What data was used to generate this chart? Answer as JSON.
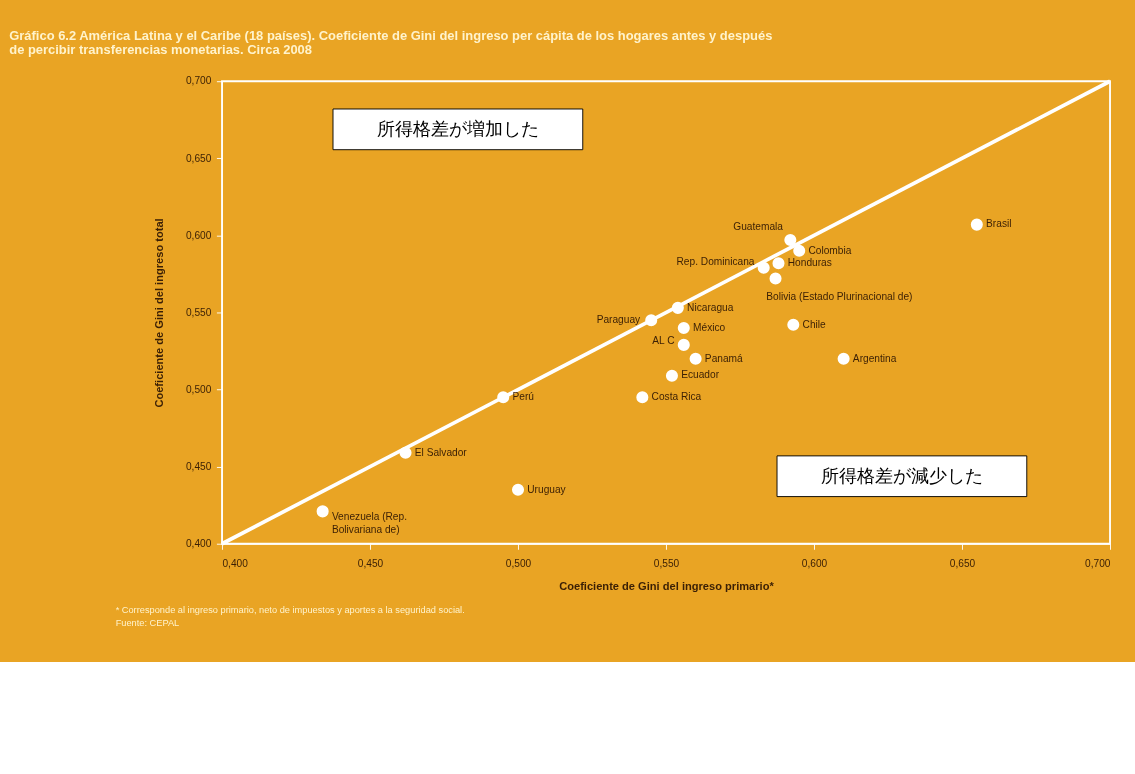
{
  "chart_data": {
    "type": "scatter",
    "title": "Gráfico 6.2 América Latina y el Caribe (18 países). Coeficiente de Gini del ingreso per cápita de los hogares antes y después de percibir transferencias monetarias. Circa 2008",
    "xlabel": "Coeficiente de Gini del ingreso primario*",
    "ylabel": "Coeficiente de Gini del ingreso total",
    "annotations": [
      "所得格差が増加した",
      "所得格差が減少した",
      "* Corresponde al ingreso primario, neto de impuestos y aportes a la seguridad social.",
      "Fuente: CEPAL"
    ],
    "xlim": [
      0.4,
      0.7
    ],
    "ylim": [
      0.4,
      0.7
    ],
    "xticks": [
      {
        "value": 0.4,
        "label": "0,400"
      },
      {
        "value": 0.45,
        "label": "0,450"
      },
      {
        "value": 0.5,
        "label": "0,500"
      },
      {
        "value": 0.55,
        "label": "0,550"
      },
      {
        "value": 0.6,
        "label": "0,600"
      },
      {
        "value": 0.65,
        "label": "0,650"
      },
      {
        "value": 0.7,
        "label": "0,700"
      }
    ],
    "yticks": [
      {
        "value": 0.4,
        "label": "0,400"
      },
      {
        "value": 0.45,
        "label": "0,450"
      },
      {
        "value": 0.5,
        "label": "0,500"
      },
      {
        "value": 0.55,
        "label": "0,550"
      },
      {
        "value": 0.6,
        "label": "0,600"
      },
      {
        "value": 0.65,
        "label": "0,650"
      },
      {
        "value": 0.7,
        "label": "0,700"
      }
    ],
    "grid": false,
    "marker": "circle",
    "series": [
      {
        "type": "line",
        "marker": "none",
        "color": "#ffffff",
        "x": [
          0.4,
          0.7
        ],
        "values": [
          0.4,
          0.7
        ]
      },
      {
        "name": "Brasil",
        "color": "#ffffff",
        "x": [
          0.655
        ],
        "values": [
          0.607
        ]
      },
      {
        "name": "Guatemala",
        "color": "#ffffff",
        "x": [
          0.592
        ],
        "values": [
          0.597
        ]
      },
      {
        "name": "Colombia",
        "color": "#ffffff",
        "x": [
          0.595
        ],
        "values": [
          0.59
        ]
      },
      {
        "name": "Honduras",
        "color": "#ffffff",
        "x": [
          0.588
        ],
        "values": [
          0.582
        ]
      },
      {
        "name": "Rep. Dominicana",
        "color": "#ffffff",
        "x": [
          0.583
        ],
        "values": [
          0.579
        ]
      },
      {
        "name": "Bolivia (Estado Plurinacional de)",
        "color": "#ffffff",
        "x": [
          0.587
        ],
        "values": [
          0.572
        ]
      },
      {
        "name": "Nicaragua",
        "color": "#ffffff",
        "x": [
          0.554
        ],
        "values": [
          0.553
        ]
      },
      {
        "name": "Paraguay",
        "color": "#ffffff",
        "x": [
          0.545
        ],
        "values": [
          0.545
        ]
      },
      {
        "name": "México",
        "color": "#ffffff",
        "x": [
          0.556
        ],
        "values": [
          0.54
        ]
      },
      {
        "name": "Chile",
        "color": "#ffffff",
        "x": [
          0.593
        ],
        "values": [
          0.542
        ]
      },
      {
        "name": "AL C",
        "color": "#ffffff",
        "x": [
          0.556
        ],
        "values": [
          0.529
        ]
      },
      {
        "name": "Panamá",
        "color": "#ffffff",
        "x": [
          0.56
        ],
        "values": [
          0.52
        ]
      },
      {
        "name": "Argentina",
        "color": "#ffffff",
        "x": [
          0.61
        ],
        "values": [
          0.52
        ]
      },
      {
        "name": "Ecuador",
        "color": "#ffffff",
        "x": [
          0.552
        ],
        "values": [
          0.509
        ]
      },
      {
        "name": "Costa Rica",
        "color": "#ffffff",
        "x": [
          0.542
        ],
        "values": [
          0.495
        ]
      },
      {
        "name": "Perú",
        "color": "#ffffff",
        "x": [
          0.495
        ],
        "values": [
          0.495
        ]
      },
      {
        "name": "El Salvador",
        "color": "#ffffff",
        "x": [
          0.462
        ],
        "values": [
          0.459
        ]
      },
      {
        "name": "Uruguay",
        "color": "#ffffff",
        "x": [
          0.5
        ],
        "values": [
          0.435
        ]
      },
      {
        "name": "Venezuela (Rep. Bolivariana de)",
        "color": "#ffffff",
        "x": [
          0.434
        ],
        "values": [
          0.421
        ]
      }
    ]
  }
}
